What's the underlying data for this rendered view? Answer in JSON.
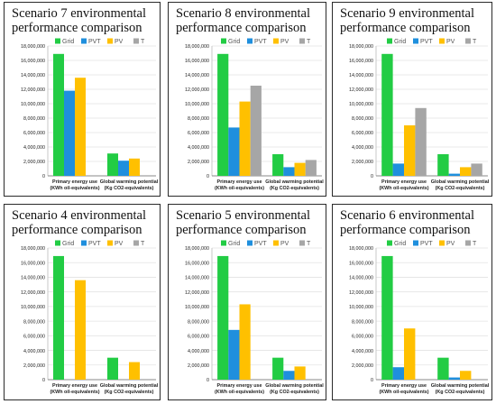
{
  "colors": {
    "Grid": "#22cc44",
    "PVT": "#1f8fdd",
    "PV": "#ffc000",
    "T": "#a6a6a6"
  },
  "charts": [
    {
      "title": "Scenario 7 environmental\nperformance comparison",
      "chart_data": {
        "type": "bar",
        "categories": [
          [
            "Primary energy use",
            "(KWh oil-equivalents)"
          ],
          [
            "Global warming potential",
            "(Kg CO2-equivalents)"
          ]
        ],
        "legend": [
          "Grid",
          "PVT",
          "PV",
          "T"
        ],
        "legend_position": "top-right",
        "ylim": [
          0,
          18000000
        ],
        "yticks": [
          "0",
          "2,000,000",
          "4,000,000",
          "6,000,000",
          "8,000,000",
          "10,000,000",
          "12,000,000",
          "14,000,000",
          "16,000,000",
          "18,000,000"
        ],
        "series": [
          {
            "name": "Grid",
            "values": [
              16900000,
              3100000
            ]
          },
          {
            "name": "PVT",
            "values": [
              11800000,
              2100000
            ]
          },
          {
            "name": "PV",
            "values": [
              13600000,
              2400000
            ]
          },
          {
            "name": "T",
            "values": [
              null,
              null
            ]
          }
        ]
      }
    },
    {
      "title": "Scenario 8 environmental\nperformance comparison",
      "chart_data": {
        "type": "bar",
        "categories": [
          [
            "Primary energy use",
            "(KWh oil-equivalents)"
          ],
          [
            "Global warming potential",
            "(Kg CO2-equivalents)"
          ]
        ],
        "legend": [
          "Grid",
          "PVT",
          "PV",
          "T"
        ],
        "legend_position": "top-right",
        "ylim": [
          0,
          18000000
        ],
        "yticks": [
          "0",
          "2,000,000",
          "4,000,000",
          "6,000,000",
          "8,000,000",
          "10,000,000",
          "12,000,000",
          "14,000,000",
          "16,000,000",
          "18,000,000"
        ],
        "series": [
          {
            "name": "Grid",
            "values": [
              16900000,
              3000000
            ]
          },
          {
            "name": "PVT",
            "values": [
              6700000,
              1200000
            ]
          },
          {
            "name": "PV",
            "values": [
              10300000,
              1800000
            ]
          },
          {
            "name": "T",
            "values": [
              12500000,
              2200000
            ]
          }
        ]
      }
    },
    {
      "title": "Scenario 9 environmental\nperformance comparison",
      "chart_data": {
        "type": "bar",
        "categories": [
          [
            "Primary energy use",
            "(KWh oil-equivalents)"
          ],
          [
            "Global warming potential",
            "(Kg CO2-equivalents)"
          ]
        ],
        "legend": [
          "Grid",
          "PVT",
          "PV",
          "T"
        ],
        "legend_position": "top-right",
        "ylim": [
          0,
          18000000
        ],
        "yticks": [
          "0",
          "2,000,000",
          "4,000,000",
          "6,000,000",
          "8,000,000",
          "10,000,000",
          "12,000,000",
          "14,000,000",
          "16,000,000",
          "18,000,000"
        ],
        "series": [
          {
            "name": "Grid",
            "values": [
              16900000,
              3000000
            ]
          },
          {
            "name": "PVT",
            "values": [
              1700000,
              300000
            ]
          },
          {
            "name": "PV",
            "values": [
              7000000,
              1200000
            ]
          },
          {
            "name": "T",
            "values": [
              9400000,
              1700000
            ]
          }
        ]
      }
    },
    {
      "title": "Scenario 4 environmental\nperformance comparison",
      "chart_data": {
        "type": "bar",
        "categories": [
          [
            "Primary energy use",
            "(KWh oil-equivalents)"
          ],
          [
            "Global warming potential",
            "(Kg CO2-equivalents)"
          ]
        ],
        "legend": [
          "Grid",
          "PVT",
          "PV",
          "T"
        ],
        "legend_position": "top-right",
        "ylim": [
          0,
          18000000
        ],
        "yticks": [
          "0",
          "2,000,000",
          "4,000,000",
          "6,000,000",
          "8,000,000",
          "10,000,000",
          "12,000,000",
          "14,000,000",
          "16,000,000",
          "18,000,000"
        ],
        "series": [
          {
            "name": "Grid",
            "values": [
              16900000,
              3000000
            ]
          },
          {
            "name": "PVT",
            "values": [
              null,
              null
            ]
          },
          {
            "name": "PV",
            "values": [
              13600000,
              2400000
            ]
          },
          {
            "name": "T",
            "values": [
              null,
              null
            ]
          }
        ]
      }
    },
    {
      "title": "Scenario 5 environmental\nperformance comparison",
      "chart_data": {
        "type": "bar",
        "categories": [
          [
            "Primary energy use",
            "(KWh oil-equivalents)"
          ],
          [
            "Global warming potential",
            "(Kg CO2-equivalents)"
          ]
        ],
        "legend": [
          "Grid",
          "PVT",
          "PV",
          "T"
        ],
        "legend_position": "top-right",
        "ylim": [
          0,
          18000000
        ],
        "yticks": [
          "0",
          "2,000,000",
          "4,000,000",
          "6,000,000",
          "8,000,000",
          "10,000,000",
          "12,000,000",
          "14,000,000",
          "16,000,000",
          "18,000,000"
        ],
        "series": [
          {
            "name": "Grid",
            "values": [
              16900000,
              3000000
            ]
          },
          {
            "name": "PVT",
            "values": [
              6800000,
              1200000
            ]
          },
          {
            "name": "PV",
            "values": [
              10300000,
              1800000
            ]
          },
          {
            "name": "T",
            "values": [
              null,
              null
            ]
          }
        ]
      }
    },
    {
      "title": "Scenario 6 environmental\nperformance comparison",
      "chart_data": {
        "type": "bar",
        "categories": [
          [
            "Primary energy use",
            "(KWh oil-equivalents)"
          ],
          [
            "Global warming potential",
            "(Kg CO2-equivalents)"
          ]
        ],
        "legend": [
          "Grid",
          "PVT",
          "PV",
          "T"
        ],
        "legend_position": "top-right",
        "ylim": [
          0,
          18000000
        ],
        "yticks": [
          "0",
          "2,000,000",
          "4,000,000",
          "6,000,000",
          "8,000,000",
          "10,000,000",
          "12,000,000",
          "14,000,000",
          "16,000,000",
          "18,000,000"
        ],
        "series": [
          {
            "name": "Grid",
            "values": [
              16900000,
              3000000
            ]
          },
          {
            "name": "PVT",
            "values": [
              1700000,
              300000
            ]
          },
          {
            "name": "PV",
            "values": [
              7000000,
              1200000
            ]
          },
          {
            "name": "T",
            "values": [
              null,
              null
            ]
          }
        ]
      }
    }
  ]
}
